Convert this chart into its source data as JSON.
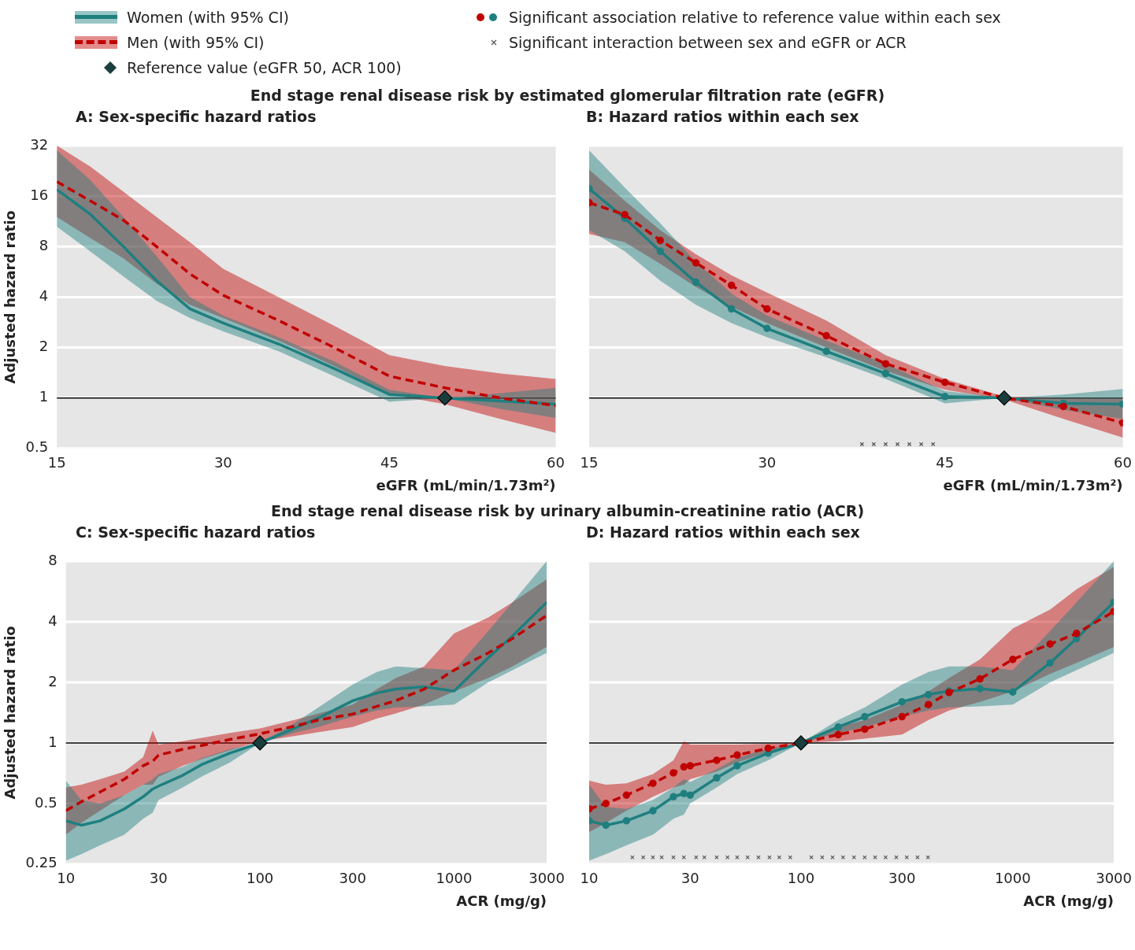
{
  "chart_data": [
    {
      "type": "line",
      "title": "End stage renal disease risk by estimated glomerular filtration rate (eGFR)",
      "subtitle": "A: Sex-specific hazard ratios",
      "xlabel": "eGFR (mL/min/1.73m²)",
      "ylabel": "Adjusted hazard ratio",
      "x": [
        15,
        18,
        21,
        24,
        27,
        30,
        35,
        40,
        45,
        50,
        55,
        60
      ],
      "xlim": [
        15,
        60
      ],
      "xticks": [
        15,
        30,
        45,
        60
      ],
      "ylim": [
        0.5,
        32
      ],
      "yticks": [
        0.5,
        1,
        2,
        4,
        8,
        16,
        32
      ],
      "log": "y",
      "grid": "y",
      "legend": "top left",
      "ref_lines": [
        {
          "axis": "y",
          "value": 1,
          "color": "#000000"
        }
      ],
      "series": [
        {
          "name": "Women (with 95% CI)",
          "color": "#1f7f7f",
          "line_style": "solid",
          "values": [
            17.5,
            12.5,
            8,
            5,
            3.4,
            2.8,
            2.1,
            1.5,
            1.05,
            1,
            0.96,
            0.92
          ],
          "lower": [
            10.5,
            7.5,
            5.3,
            3.8,
            3,
            2.5,
            1.9,
            1.35,
            0.95,
            1,
            0.86,
            0.76
          ],
          "upper": [
            30,
            20,
            12,
            7,
            4,
            3.1,
            2.3,
            1.65,
            1.12,
            1,
            1.07,
            1.15
          ]
        },
        {
          "name": "Men (with 95% CI)",
          "color": "#c00000",
          "line_style": "dashed",
          "values": [
            19.5,
            15,
            11.5,
            8,
            5.5,
            4.1,
            2.9,
            2,
            1.35,
            1.15,
            1,
            0.9
          ],
          "lower": [
            12,
            9,
            6.8,
            4.8,
            3.6,
            3,
            2.2,
            1.55,
            1.05,
            0.92,
            0.75,
            0.62
          ],
          "upper": [
            32,
            24,
            17,
            12,
            8.5,
            5.9,
            4,
            2.7,
            1.8,
            1.55,
            1.4,
            1.3
          ]
        },
        {
          "name": "Reference value (eGFR 50, ACR 100)",
          "type": "scatter",
          "marker": "diamond",
          "color": "#1a3d3d",
          "x": [
            50
          ],
          "values": [
            1
          ]
        }
      ]
    },
    {
      "type": "line",
      "subtitle": "B: Hazard ratios within each sex",
      "xlabel": "eGFR (mL/min/1.73m²)",
      "x": [
        15,
        18,
        21,
        24,
        27,
        30,
        35,
        40,
        45,
        50,
        55,
        60
      ],
      "xlim": [
        15,
        60
      ],
      "xticks": [
        15,
        30,
        45,
        60
      ],
      "ylim": [
        0.5,
        32
      ],
      "yticks": [
        0.5,
        1,
        2,
        4,
        8,
        16,
        32
      ],
      "log": "y",
      "grid": "y",
      "legend": "top left",
      "tick_labels": "x",
      "ref_lines": [
        {
          "axis": "y",
          "value": 1,
          "color": "#000000"
        }
      ],
      "series": [
        {
          "name": "Significant association relative to reference value within each sex",
          "color": "#1f7f7f",
          "line_style": "solid",
          "marker": "circle",
          "values": [
            17.7,
            11.8,
            7.5,
            4.9,
            3.4,
            2.6,
            1.9,
            1.4,
            1.02,
            1,
            0.93,
            0.92
          ],
          "lower": [
            10,
            7.5,
            5,
            3.6,
            2.8,
            2.3,
            1.75,
            1.3,
            0.93,
            1,
            0.85,
            0.75
          ],
          "upper": [
            30,
            18,
            11,
            6.5,
            4.2,
            3.1,
            2.2,
            1.6,
            1.1,
            1,
            1.05,
            1.13
          ]
        },
        {
          "color": "#c00000",
          "line_style": "dashed",
          "marker": "circle",
          "values": [
            14.6,
            12.4,
            8.7,
            6.4,
            4.7,
            3.4,
            2.35,
            1.6,
            1.24,
            1,
            0.89,
            0.71
          ],
          "lower": [
            9.5,
            8.5,
            6.3,
            4.6,
            3.5,
            2.8,
            2,
            1.45,
            1.12,
            0.98,
            0.75,
            0.58
          ],
          "upper": [
            23,
            15,
            10,
            7.2,
            5.4,
            4.25,
            2.9,
            1.8,
            1.3,
            1.02,
            1,
            1
          ]
        },
        {
          "type": "scatter",
          "marker": "diamond",
          "color": "#1a3d3d",
          "x": [
            50
          ],
          "values": [
            1
          ]
        },
        {
          "name": "Significant interaction between sex and eGFR or ACR",
          "type": "scatter",
          "marker": "cross",
          "color": "#555555",
          "x": [
            38,
            39,
            40,
            41,
            42,
            43,
            44
          ],
          "values": [
            0.53,
            0.53,
            0.53,
            0.53,
            0.53,
            0.53,
            0.53
          ]
        }
      ]
    },
    {
      "type": "line",
      "title": "End stage renal disease risk by urinary albumin-creatinine ratio (ACR)",
      "subtitle": "C: Sex-specific hazard ratios",
      "xlabel": "ACR (mg/g)",
      "ylabel": "Adjusted hazard ratio",
      "x": [
        10,
        12,
        15,
        20,
        25,
        28,
        30,
        40,
        50,
        70,
        100,
        150,
        200,
        300,
        400,
        500,
        700,
        1000,
        1500,
        2000,
        3000
      ],
      "xlim": [
        10,
        3000
      ],
      "xticks": [
        10,
        30,
        100,
        300,
        1000,
        3000
      ],
      "ylim": [
        0.25,
        8
      ],
      "yticks": [
        0.25,
        0.5,
        1,
        2,
        4,
        8
      ],
      "log": "xy",
      "grid": "y",
      "ref_lines": [
        {
          "axis": "y",
          "value": 1,
          "color": "#000000"
        }
      ],
      "series": [
        {
          "color": "#1f7f7f",
          "line_style": "solid",
          "values": [
            0.41,
            0.39,
            0.41,
            0.47,
            0.54,
            0.59,
            0.61,
            0.69,
            0.78,
            0.89,
            1,
            1.18,
            1.33,
            1.62,
            1.77,
            1.85,
            1.9,
            1.81,
            2.65,
            3.4,
            5.0
          ],
          "lower": [
            0.26,
            0.28,
            0.31,
            0.35,
            0.42,
            0.45,
            0.52,
            0.6,
            0.68,
            0.8,
            1,
            1.12,
            1.2,
            1.35,
            1.45,
            1.5,
            1.52,
            1.55,
            2.0,
            2.3,
            2.8
          ],
          "upper": [
            0.65,
            0.52,
            0.5,
            0.55,
            0.62,
            0.66,
            0.7,
            0.76,
            0.84,
            0.93,
            1,
            1.25,
            1.5,
            1.95,
            2.25,
            2.4,
            2.35,
            2.3,
            3.6,
            5.0,
            8
          ]
        },
        {
          "color": "#c00000",
          "line_style": "dashed",
          "values": [
            0.46,
            0.51,
            0.57,
            0.66,
            0.77,
            0.81,
            0.87,
            0.93,
            0.97,
            1.04,
            1.11,
            1.21,
            1.3,
            1.39,
            1.52,
            1.62,
            1.85,
            2.3,
            2.8,
            3.3,
            4.3
          ],
          "lower": [
            0.35,
            0.4,
            0.46,
            0.55,
            0.62,
            0.62,
            0.68,
            0.77,
            0.83,
            0.92,
            1.02,
            1.08,
            1.13,
            1.2,
            1.32,
            1.4,
            1.55,
            1.8,
            2.1,
            2.4,
            3.0
          ],
          "upper": [
            0.6,
            0.62,
            0.66,
            0.72,
            0.85,
            1.15,
            0.98,
            1.02,
            1.06,
            1.12,
            1.18,
            1.3,
            1.4,
            1.55,
            1.85,
            2.1,
            2.4,
            3.5,
            4.2,
            5.0,
            6.5
          ]
        },
        {
          "type": "scatter",
          "marker": "diamond",
          "color": "#1a3d3d",
          "x": [
            100
          ],
          "values": [
            1
          ]
        }
      ]
    },
    {
      "type": "line",
      "subtitle": "D: Hazard ratios within each sex",
      "xlabel": "ACR (mg/g)",
      "x": [
        10,
        12,
        15,
        20,
        25,
        28,
        30,
        40,
        50,
        70,
        100,
        150,
        200,
        300,
        400,
        500,
        700,
        1000,
        1500,
        2000,
        3000
      ],
      "xlim": [
        10,
        3000
      ],
      "xticks": [
        10,
        30,
        100,
        300,
        1000,
        3000
      ],
      "ylim": [
        0.25,
        8
      ],
      "yticks": [
        0.25,
        0.5,
        1,
        2,
        4,
        8
      ],
      "log": "xy",
      "grid": "y",
      "tick_labels": "x",
      "ref_lines": [
        {
          "axis": "y",
          "value": 1,
          "color": "#000000"
        }
      ],
      "series": [
        {
          "color": "#1f7f7f",
          "line_style": "solid",
          "marker": "circle",
          "values": [
            0.41,
            0.39,
            0.41,
            0.46,
            0.54,
            0.56,
            0.55,
            0.67,
            0.77,
            0.89,
            1,
            1.2,
            1.35,
            1.6,
            1.74,
            1.81,
            1.86,
            1.79,
            2.5,
            3.3,
            5.0
          ],
          "lower": [
            0.26,
            0.28,
            0.31,
            0.35,
            0.42,
            0.44,
            0.5,
            0.6,
            0.7,
            0.82,
            1,
            1.12,
            1.2,
            1.35,
            1.45,
            1.5,
            1.52,
            1.55,
            2.0,
            2.3,
            2.8
          ],
          "upper": [
            0.62,
            0.48,
            0.47,
            0.52,
            0.6,
            0.66,
            0.64,
            0.74,
            0.84,
            0.94,
            1,
            1.3,
            1.5,
            1.95,
            2.25,
            2.4,
            2.4,
            2.3,
            3.6,
            5.0,
            8
          ]
        },
        {
          "color": "#c00000",
          "line_style": "dashed",
          "marker": "circle",
          "values": [
            0.47,
            0.5,
            0.55,
            0.63,
            0.71,
            0.76,
            0.77,
            0.82,
            0.87,
            0.94,
            1,
            1.1,
            1.17,
            1.35,
            1.55,
            1.78,
            2.08,
            2.6,
            3.1,
            3.5,
            4.5
          ],
          "lower": [
            0.36,
            0.4,
            0.46,
            0.54,
            0.6,
            0.62,
            0.66,
            0.72,
            0.8,
            0.9,
            1,
            1.02,
            1.05,
            1.1,
            1.3,
            1.45,
            1.6,
            1.8,
            2.2,
            2.5,
            3.0
          ],
          "upper": [
            0.65,
            0.62,
            0.63,
            0.7,
            0.82,
            1.02,
            0.98,
            0.98,
            0.98,
            0.99,
            1,
            1.2,
            1.3,
            1.55,
            1.8,
            2.1,
            2.6,
            3.7,
            4.6,
            5.8,
            7.5
          ]
        },
        {
          "type": "scatter",
          "marker": "diamond",
          "color": "#1a3d3d",
          "x": [
            100
          ],
          "values": [
            1
          ]
        },
        {
          "type": "scatter",
          "marker": "cross",
          "color": "#555555",
          "x": [
            16,
            18,
            20,
            22,
            25,
            28,
            32,
            35,
            40,
            45,
            50,
            56,
            63,
            71,
            79,
            89,
            112,
            126,
            141,
            158,
            178,
            200,
            224,
            251,
            282,
            316,
            355,
            398
          ],
          "values": [
            0.27,
            0.27,
            0.27,
            0.27,
            0.27,
            0.27,
            0.27,
            0.27,
            0.27,
            0.27,
            0.27,
            0.27,
            0.27,
            0.27,
            0.27,
            0.27,
            0.27,
            0.27,
            0.27,
            0.27,
            0.27,
            0.27,
            0.27,
            0.27,
            0.27,
            0.27,
            0.27,
            0.27
          ]
        }
      ]
    }
  ]
}
